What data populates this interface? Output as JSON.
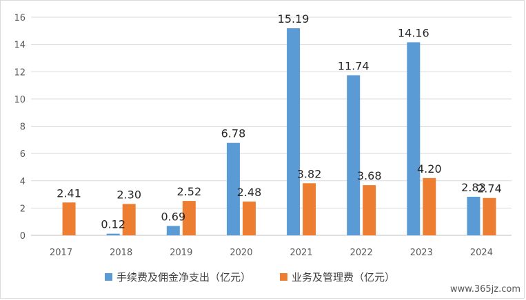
{
  "chart_data": {
    "type": "bar",
    "categories": [
      "2017",
      "2018",
      "2019",
      "2020",
      "2021",
      "2022",
      "2023",
      "2024"
    ],
    "series": [
      {
        "name": "手续费及佣金净支出（亿元）",
        "values": [
          null,
          0.12,
          0.69,
          6.78,
          15.19,
          11.74,
          14.16,
          2.83
        ],
        "labels": [
          "",
          "0.12",
          "0.69",
          "6.78",
          "15.19",
          "11.74",
          "14.16",
          "2.83"
        ],
        "color": "#5B9BD5"
      },
      {
        "name": "业务及管理费（亿元）",
        "values": [
          2.41,
          2.3,
          2.52,
          2.48,
          3.82,
          3.68,
          4.2,
          2.74
        ],
        "labels": [
          "2.41",
          "2.30",
          "2.52",
          "2.48",
          "3.82",
          "3.68",
          "4.20",
          "2.74"
        ],
        "color": "#ED7D31"
      }
    ],
    "y_ticks": [
      "0",
      "2",
      "4",
      "6",
      "8",
      "10",
      "12",
      "14",
      "16"
    ],
    "ylim": [
      0,
      16
    ],
    "grid": true,
    "legend_position": "bottom",
    "title": "",
    "xlabel": "",
    "ylabel": ""
  },
  "watermark": "www.365jz.com",
  "colors": {
    "grid": "#d9d9d9",
    "axis": "#bfbfbf"
  }
}
